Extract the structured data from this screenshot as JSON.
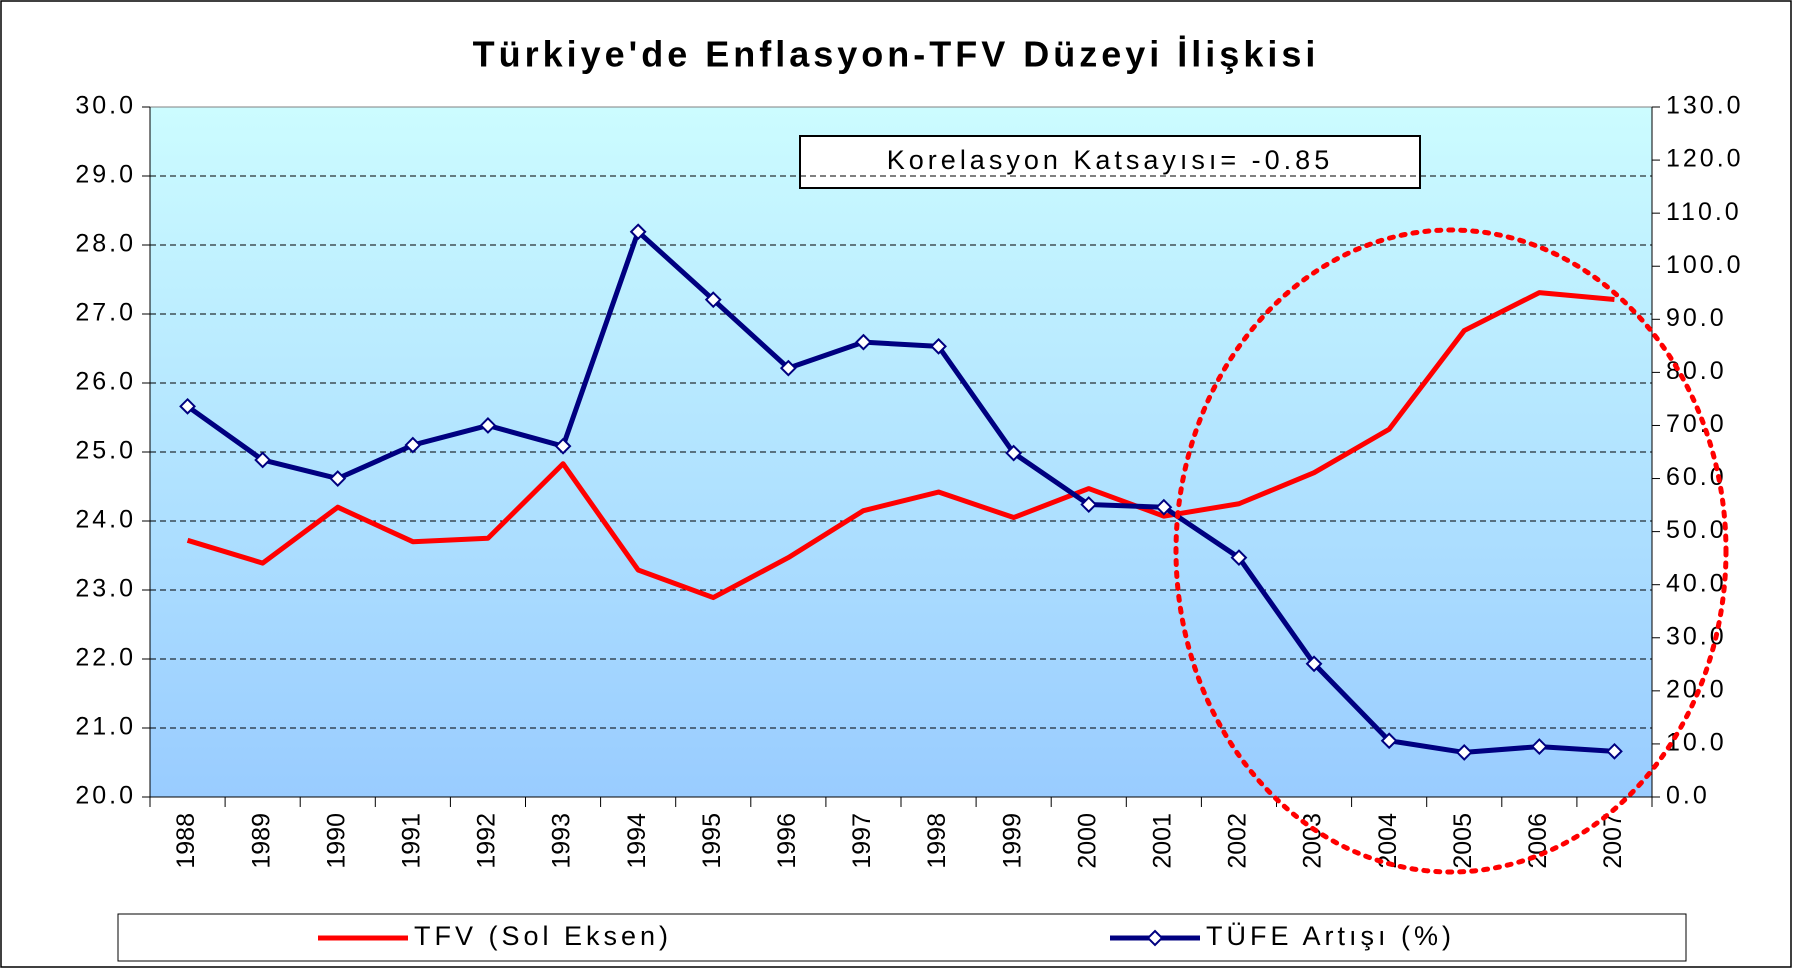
{
  "chart_data": {
    "type": "line",
    "title": "Türkiye'de Enflasyon-TFV Düzeyi İlişkisi",
    "annotation": "Korelasyon Katsayısı= -0.85",
    "categories": [
      "1988",
      "1989",
      "1990",
      "1991",
      "1992",
      "1993",
      "1994",
      "1995",
      "1996",
      "1997",
      "1998",
      "1999",
      "2000",
      "2001",
      "2002",
      "2003",
      "2004",
      "2005",
      "2006",
      "2007"
    ],
    "series": [
      {
        "name": "TFV (Sol Eksen)",
        "color": "#ff0000",
        "values": [
          23.72,
          23.39,
          24.2,
          23.7,
          23.75,
          24.83,
          23.29,
          22.89,
          23.47,
          24.15,
          24.42,
          24.05,
          24.47,
          24.07,
          24.25,
          24.7,
          25.33,
          26.76,
          27.31,
          27.21
        ]
      },
      {
        "name": "TÜFE Artışı (%)",
        "color": "#000080",
        "axis": "y2",
        "marker": "diamond",
        "values": [
          73.6,
          63.5,
          60.0,
          66.3,
          70.0,
          66.1,
          106.5,
          93.7,
          80.8,
          85.7,
          84.9,
          64.8,
          55.1,
          54.6,
          45.1,
          25.1,
          10.6,
          8.4,
          9.5,
          8.6
        ]
      }
    ],
    "ylim": [
      20,
      30
    ],
    "yticks": [
      {
        "value": 20,
        "label": "20.0"
      },
      {
        "value": 21,
        "label": "21.0"
      },
      {
        "value": 22,
        "label": "22.0"
      },
      {
        "value": 23,
        "label": "23.0"
      },
      {
        "value": 24,
        "label": "24.0"
      },
      {
        "value": 25,
        "label": "25.0"
      },
      {
        "value": 26,
        "label": "26.0"
      },
      {
        "value": 27,
        "label": "27.0"
      },
      {
        "value": 28,
        "label": "28.0"
      },
      {
        "value": 29,
        "label": "29.0"
      },
      {
        "value": 30,
        "label": "30.0"
      }
    ],
    "y2lim": [
      0,
      130
    ],
    "y2ticks": [
      {
        "value": 0,
        "label": "0.0"
      },
      {
        "value": 10,
        "label": "10.0"
      },
      {
        "value": 20,
        "label": "20.0"
      },
      {
        "value": 30,
        "label": "30.0"
      },
      {
        "value": 40,
        "label": "40.0"
      },
      {
        "value": 50,
        "label": "50.0"
      },
      {
        "value": 60,
        "label": "60.0"
      },
      {
        "value": 70,
        "label": "70.0"
      },
      {
        "value": 80,
        "label": "80.0"
      },
      {
        "value": 90,
        "label": "90.0"
      },
      {
        "value": 100,
        "label": "100.0"
      },
      {
        "value": 110,
        "label": "110.0"
      },
      {
        "value": 120,
        "label": "120.0"
      },
      {
        "value": 130,
        "label": "130.0"
      }
    ],
    "grid": true,
    "legend": "bottom"
  }
}
